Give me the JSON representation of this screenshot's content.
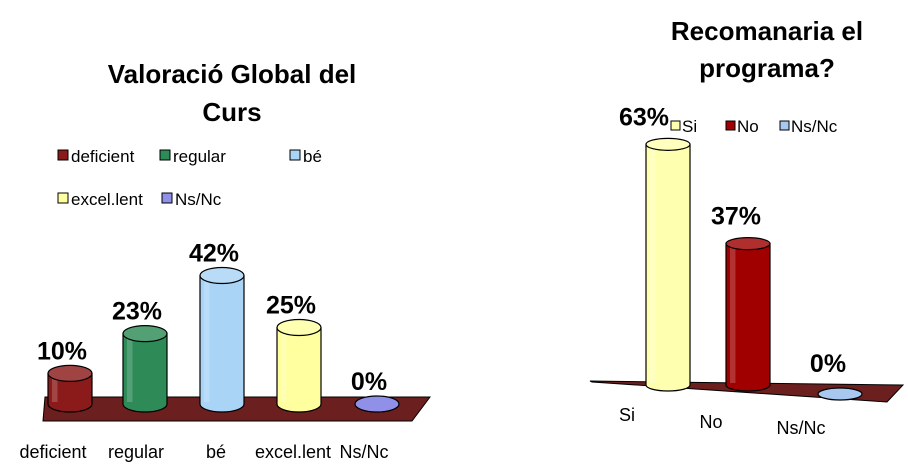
{
  "chart_data": [
    {
      "type": "bar",
      "title_lines": [
        "Valoració Global del",
        "Curs"
      ],
      "categories": [
        "deficient",
        "regular",
        "bé",
        "excel.lent",
        "Ns/Nc"
      ],
      "values": [
        10,
        23,
        42,
        25,
        0
      ],
      "value_labels": [
        "10%",
        "23%",
        "42%",
        "25%",
        "0%"
      ],
      "colors": [
        "#8b1a1a",
        "#2e8b57",
        "#a9d4f5",
        "#ffffa0",
        "#9090e8"
      ],
      "legend": {
        "position": "top",
        "entries": [
          "deficient",
          "regular",
          "bé",
          "excel.lent",
          "Ns/Nc"
        ]
      },
      "ylim": [
        0,
        50
      ],
      "grid": false,
      "floor_color": "#6b1f1f"
    },
    {
      "type": "bar",
      "title_lines": [
        "Recomanaria el",
        "programa?"
      ],
      "categories": [
        "Si",
        "No",
        "Ns/Nc"
      ],
      "values": [
        63,
        37,
        0
      ],
      "value_labels": [
        "63%",
        "37%",
        "0%"
      ],
      "colors": [
        "#ffffb0",
        "#a00000",
        "#a9c8f0"
      ],
      "legend": {
        "position": "top-right",
        "entries": [
          "Si",
          "No",
          "Ns/Nc"
        ]
      },
      "ylim": [
        0,
        70
      ],
      "grid": false,
      "floor_color": "#6b1f1f"
    }
  ]
}
